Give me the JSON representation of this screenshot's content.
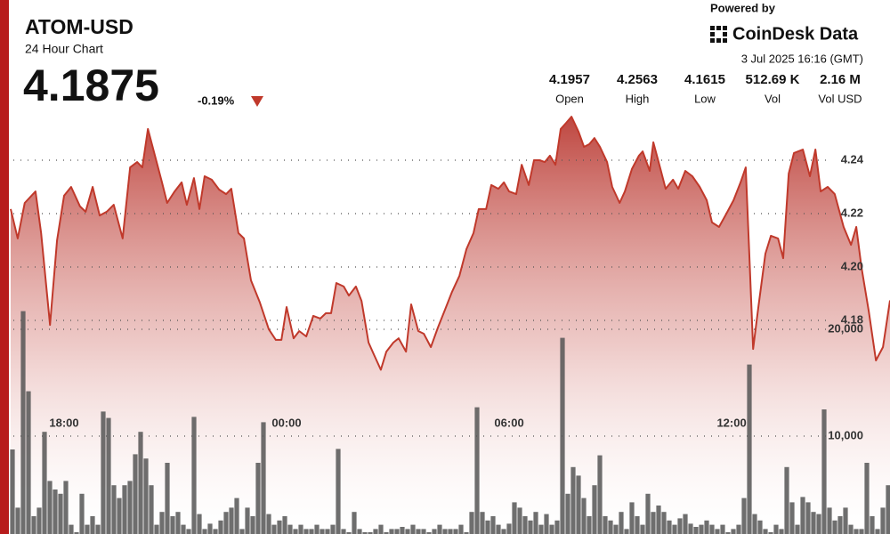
{
  "header": {
    "symbol": "ATOM-USD",
    "subtitle": "24 Hour Chart",
    "price": "4.1875",
    "change": "-0.19%",
    "powered_by": "Powered by",
    "brand": "CoinDesk Data",
    "timestamp": "3 Jul 2025 16:16 (GMT)",
    "stats": [
      {
        "value": "4.1957",
        "label": "Open"
      },
      {
        "value": "4.2563",
        "label": "High"
      },
      {
        "value": "4.1615",
        "label": "Low"
      },
      {
        "value": "512.69 K",
        "label": "Vol"
      },
      {
        "value": "2.16 M",
        "label": "Vol USD"
      }
    ]
  },
  "chart_data": {
    "type": "area",
    "color": "#c0392b",
    "x": [
      -1.44,
      -1.25,
      -1.06,
      -0.77,
      -0.62,
      -0.38,
      -0.19,
      0,
      0.19,
      0.43,
      0.58,
      0.77,
      0.96,
      1.15,
      1.34,
      1.58,
      1.78,
      1.97,
      2.11,
      2.26,
      2.45,
      2.64,
      2.78,
      2.98,
      3.17,
      3.31,
      3.5,
      3.65,
      3.79,
      3.98,
      4.18,
      4.37,
      4.51,
      4.7,
      4.85,
      5.04,
      5.28,
      5.52,
      5.71,
      5.86,
      6,
      6.19,
      6.34,
      6.53,
      6.72,
      6.91,
      7.06,
      7.2,
      7.34,
      7.54,
      7.68,
      7.87,
      8.02,
      8.21,
      8.35,
      8.54,
      8.69,
      8.88,
      9.02,
      9.22,
      9.36,
      9.55,
      9.7,
      9.89,
      10.08,
      10.27,
      10.46,
      10.66,
      10.85,
      11.04,
      11.18,
      11.38,
      11.52,
      11.71,
      11.86,
      12,
      12.19,
      12.34,
      12.53,
      12.67,
      12.82,
      12.96,
      13.1,
      13.25,
      13.39,
      13.54,
      13.68,
      13.87,
      14.02,
      14.16,
      14.3,
      14.45,
      14.64,
      14.78,
      14.98,
      15.12,
      15.31,
      15.5,
      15.6,
      15.79,
      15.89,
      16.08,
      16.22,
      16.42,
      16.56,
      16.75,
      16.94,
      17.14,
      17.33,
      17.47,
      17.66,
      17.86,
      18.05,
      18.24,
      18.38,
      18.48,
      18.58,
      18.72,
      18.91,
      19.06,
      19.25,
      19.39,
      19.54,
      19.68,
      19.92,
      20.11,
      20.26,
      20.4,
      20.59,
      20.78,
      21.02,
      21.22,
      21.36,
      21.5,
      21.7,
      21.89,
      22.08,
      22.27
    ],
    "values": [
      4.2217,
      4.2107,
      4.224,
      4.2283,
      4.2127,
      4.1783,
      4.21,
      4.2267,
      4.23,
      4.2227,
      4.2207,
      4.23,
      4.2193,
      4.2207,
      4.2233,
      4.2107,
      4.2373,
      4.2393,
      4.2373,
      4.2517,
      4.2417,
      4.2317,
      4.224,
      4.2283,
      4.2317,
      4.2233,
      4.2333,
      4.2217,
      4.234,
      4.2327,
      4.229,
      4.2273,
      4.2293,
      4.2127,
      4.2107,
      4.195,
      4.1867,
      4.1767,
      4.1727,
      4.1727,
      4.185,
      4.1733,
      4.176,
      4.174,
      4.1817,
      4.1807,
      4.1827,
      4.1827,
      4.194,
      4.1927,
      4.1893,
      4.1927,
      4.1873,
      4.1717,
      4.1673,
      4.1615,
      4.1683,
      4.1717,
      4.1733,
      4.1683,
      4.186,
      4.176,
      4.175,
      4.17,
      4.1773,
      4.184,
      4.1907,
      4.1967,
      4.2067,
      4.2127,
      4.2217,
      4.2217,
      4.2307,
      4.2293,
      4.2317,
      4.2283,
      4.2273,
      4.2383,
      4.2307,
      4.24,
      4.24,
      4.2393,
      4.2417,
      4.2383,
      4.2517,
      4.254,
      4.2563,
      4.2507,
      4.245,
      4.246,
      4.2483,
      4.245,
      4.2393,
      4.23,
      4.224,
      4.2283,
      4.2367,
      4.2417,
      4.2433,
      4.236,
      4.2467,
      4.2367,
      4.2293,
      4.2327,
      4.2293,
      4.236,
      4.234,
      4.23,
      4.225,
      4.2167,
      4.215,
      4.22,
      4.225,
      4.2317,
      4.2373,
      4.2033,
      4.1693,
      4.185,
      4.205,
      4.2117,
      4.2107,
      4.2033,
      4.235,
      4.2427,
      4.244,
      4.234,
      4.244,
      4.2283,
      4.23,
      4.2273,
      4.215,
      4.2083,
      4.215,
      4.2,
      4.1833,
      4.165,
      4.17,
      4.1875
    ],
    "xlim": [
      -1.44,
      22.27
    ],
    "xticks": [
      {
        "value": 0,
        "label": "18:00"
      },
      {
        "value": 6,
        "label": "00:00"
      },
      {
        "value": 12,
        "label": "06:00"
      },
      {
        "value": 18,
        "label": "12:00"
      }
    ],
    "ylim": [
      4.1,
      4.26
    ],
    "yticks": [
      4.18,
      {
        "value": 4.2,
        "label": "4.20"
      },
      4.22,
      4.24
    ],
    "grid": true,
    "volume": {
      "type": "bar",
      "color": "#555555",
      "values": [
        8750,
        3300,
        21700,
        14200,
        2500,
        3300,
        10400,
        5800,
        5000,
        4600,
        5800,
        1700,
        1000,
        4600,
        1700,
        2500,
        1700,
        12300,
        11700,
        5400,
        4200,
        5400,
        5800,
        8300,
        10400,
        7900,
        5400,
        1700,
        2900,
        7500,
        2500,
        2900,
        1700,
        1300,
        11800,
        2700,
        1300,
        1800,
        1300,
        2100,
        2900,
        3300,
        4200,
        1300,
        3300,
        2500,
        7500,
        11300,
        2700,
        1700,
        2100,
        2500,
        1700,
        1300,
        1700,
        1300,
        1300,
        1700,
        1300,
        1300,
        1700,
        8800,
        1300,
        1000,
        2900,
        1300,
        1000,
        1000,
        1300,
        1700,
        1000,
        1300,
        1300,
        1500,
        1300,
        1700,
        1300,
        1300,
        1000,
        1300,
        1700,
        1300,
        1300,
        1300,
        1700,
        1000,
        2900,
        12700,
        2900,
        2100,
        2500,
        1700,
        1300,
        1800,
        3800,
        3300,
        2500,
        2100,
        2900,
        1700,
        2700,
        1700,
        2100,
        19200,
        4600,
        7100,
        6300,
        4200,
        2500,
        5400,
        8200,
        2500,
        2100,
        1700,
        2900,
        1300,
        3800,
        2500,
        1700,
        4600,
        2900,
        3500,
        2900,
        2100,
        1700,
        2300,
        2700,
        1800,
        1500,
        1700,
        2100,
        1700,
        1300,
        1700,
        1000,
        1300,
        1700,
        4200,
        16700,
        2700,
        2100,
        1300,
        1000,
        1700,
        1300,
        7100,
        3800,
        1700,
        4300,
        3800,
        2900,
        2700,
        12500,
        3300,
        2100,
        2500,
        3300,
        1700,
        1300,
        1300,
        7500,
        2500,
        1300,
        3300,
        5400
      ],
      "y2lim": [
        0,
        30000
      ],
      "y2ticks": [
        {
          "value": 10000,
          "label": "10,000"
        },
        {
          "value": 20000,
          "label": "20,000"
        }
      ]
    }
  }
}
